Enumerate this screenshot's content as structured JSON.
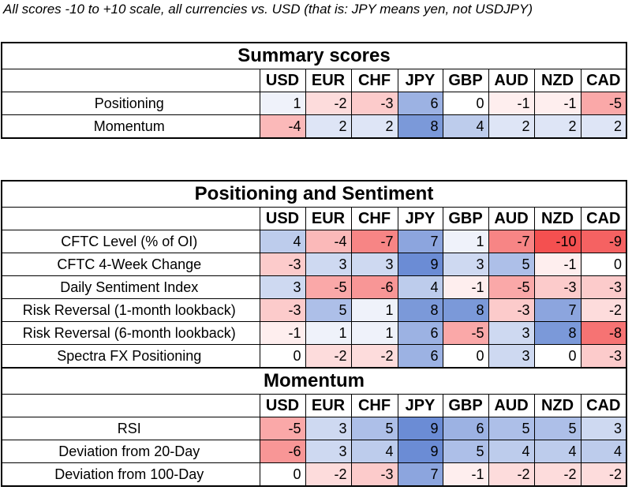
{
  "note": "All scores -10 to +10 scale, all currencies vs. USD (that is: JPY means yen, not USDJPY)",
  "currencies": [
    "USD",
    "EUR",
    "CHF",
    "JPY",
    "GBP",
    "AUD",
    "NZD",
    "CAD"
  ],
  "summary": {
    "title": "Summary scores",
    "rows": [
      {
        "label": "Positioning",
        "values": [
          1,
          -2,
          -3,
          6,
          0,
          -1,
          -1,
          -5
        ]
      },
      {
        "label": "Momentum",
        "values": [
          -4,
          2,
          2,
          8,
          4,
          2,
          2,
          2
        ]
      }
    ]
  },
  "positioning": {
    "title": "Positioning and Sentiment",
    "rows": [
      {
        "label": "CFTC Level (% of OI)",
        "values": [
          4,
          -4,
          -7,
          7,
          1,
          -7,
          -10,
          -9
        ]
      },
      {
        "label": "CFTC 4-Week Change",
        "values": [
          -3,
          3,
          3,
          9,
          3,
          5,
          -1,
          0
        ]
      },
      {
        "label": "Daily Sentiment Index",
        "values": [
          3,
          -5,
          -6,
          4,
          -1,
          -5,
          -3,
          -3
        ]
      },
      {
        "label": "Risk Reversal (1-month lookback)",
        "values": [
          -3,
          5,
          1,
          8,
          8,
          -3,
          7,
          -2
        ]
      },
      {
        "label": "Risk Reversal (6-month lookback)",
        "values": [
          -1,
          1,
          1,
          6,
          -5,
          3,
          8,
          -8
        ]
      },
      {
        "label": "Spectra FX Positioning",
        "values": [
          0,
          -2,
          -2,
          6,
          0,
          3,
          0,
          -3
        ]
      }
    ]
  },
  "momentum": {
    "title": "Momentum",
    "rows": [
      {
        "label": "RSI",
        "values": [
          -5,
          3,
          5,
          9,
          6,
          5,
          5,
          3
        ]
      },
      {
        "label": "Deviation from 20-Day",
        "values": [
          -6,
          3,
          4,
          9,
          5,
          4,
          4,
          4
        ]
      },
      {
        "label": "Deviation from 100-Day",
        "values": [
          0,
          -2,
          -3,
          7,
          -1,
          -2,
          -2,
          -2
        ]
      }
    ]
  },
  "colors": {
    "positive": "#5a7fd0",
    "negative": "#f46060",
    "neutral": "#ffffff"
  }
}
